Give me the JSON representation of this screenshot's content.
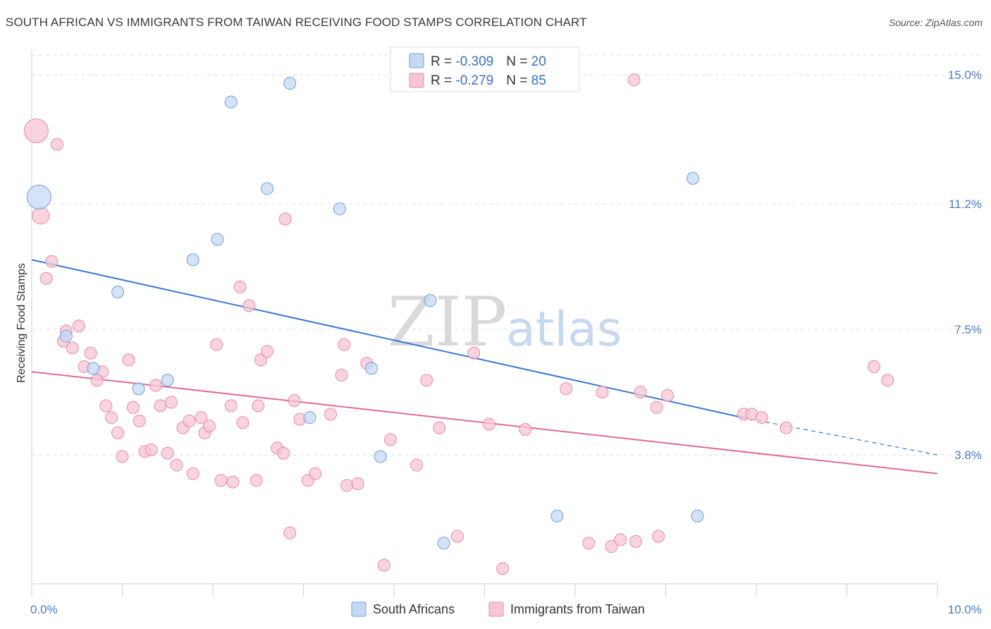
{
  "title": "SOUTH AFRICAN VS IMMIGRANTS FROM TAIWAN RECEIVING FOOD STAMPS CORRELATION CHART",
  "source": "Source: ZipAtlas.com",
  "watermark": {
    "zip": "ZIP",
    "atlas": "atlas"
  },
  "colors": {
    "blue_fill": "#c5d9f3",
    "blue_stroke": "#6f9fdb",
    "blue_line": "#3a78d4",
    "pink_fill": "#f7c6d4",
    "pink_stroke": "#e58aa8",
    "pink_line": "#e06b98",
    "grid": "#dcdcdc",
    "tick_text": "#4a7cc7"
  },
  "legend": {
    "rows": [
      {
        "r_label": "R = ",
        "r_value": "-0.309",
        "n_label": "N = ",
        "n_value": "20"
      },
      {
        "r_label": "R = ",
        "r_value": "-0.279",
        "n_label": "N = ",
        "n_value": "85"
      }
    ]
  },
  "bottom_legend": [
    "South Africans",
    "Immigrants from Taiwan"
  ],
  "chart_data": {
    "type": "scatter",
    "title": "SOUTH AFRICAN VS IMMIGRANTS FROM TAIWAN RECEIVING FOOD STAMPS CORRELATION CHART",
    "xlabel": "",
    "ylabel": "Receiving Food Stamps",
    "xlim": [
      0,
      10
    ],
    "ylim": [
      0,
      15.75
    ],
    "x_tick_labels": [
      "0.0%",
      "10.0%"
    ],
    "y_ticks": [
      3.8,
      7.5,
      11.2,
      15.0
    ],
    "y_tick_labels": [
      "3.8%",
      "7.5%",
      "11.2%",
      "15.0%"
    ],
    "grid": true,
    "legend_position": "top-center",
    "series": [
      {
        "name": "South Africans",
        "r": -0.309,
        "n": 20,
        "trend": {
          "x0": 0.0,
          "y0": 9.55,
          "x1": 7.85,
          "y1": 4.9,
          "dashed_to_x": 10.0,
          "dashed_to_y": 3.8
        },
        "points": [
          {
            "x": 0.08,
            "y": 11.4,
            "size": "large"
          },
          {
            "x": 2.2,
            "y": 14.2
          },
          {
            "x": 2.85,
            "y": 14.75
          },
          {
            "x": 2.6,
            "y": 11.65
          },
          {
            "x": 3.4,
            "y": 11.05
          },
          {
            "x": 2.05,
            "y": 10.15
          },
          {
            "x": 1.78,
            "y": 9.55
          },
          {
            "x": 0.95,
            "y": 8.6
          },
          {
            "x": 0.38,
            "y": 7.3
          },
          {
            "x": 0.68,
            "y": 6.35
          },
          {
            "x": 1.18,
            "y": 5.75
          },
          {
            "x": 1.5,
            "y": 6.0
          },
          {
            "x": 4.4,
            "y": 8.35
          },
          {
            "x": 3.75,
            "y": 6.35
          },
          {
            "x": 3.07,
            "y": 4.9
          },
          {
            "x": 3.85,
            "y": 3.75
          },
          {
            "x": 7.3,
            "y": 11.95
          },
          {
            "x": 5.8,
            "y": 2.0
          },
          {
            "x": 7.35,
            "y": 2.0
          },
          {
            "x": 4.55,
            "y": 1.2
          }
        ]
      },
      {
        "name": "Immigrants from Taiwan",
        "r": -0.279,
        "n": 85,
        "trend": {
          "x0": 0.0,
          "y0": 6.25,
          "x1": 10.0,
          "y1": 3.25
        },
        "points": [
          {
            "x": 0.05,
            "y": 13.35,
            "size": "large"
          },
          {
            "x": 0.28,
            "y": 12.95
          },
          {
            "x": 0.1,
            "y": 10.85,
            "size": "medium"
          },
          {
            "x": 0.22,
            "y": 9.5
          },
          {
            "x": 0.16,
            "y": 9.0
          },
          {
            "x": 0.52,
            "y": 7.6
          },
          {
            "x": 0.38,
            "y": 7.45
          },
          {
            "x": 0.35,
            "y": 7.15
          },
          {
            "x": 0.45,
            "y": 6.95
          },
          {
            "x": 0.65,
            "y": 6.8
          },
          {
            "x": 0.58,
            "y": 6.4
          },
          {
            "x": 0.78,
            "y": 6.25
          },
          {
            "x": 0.72,
            "y": 6.0
          },
          {
            "x": 1.07,
            "y": 6.6
          },
          {
            "x": 0.82,
            "y": 5.25
          },
          {
            "x": 0.88,
            "y": 4.9
          },
          {
            "x": 0.95,
            "y": 4.45
          },
          {
            "x": 1.0,
            "y": 3.75
          },
          {
            "x": 1.12,
            "y": 5.2
          },
          {
            "x": 1.19,
            "y": 4.8
          },
          {
            "x": 1.25,
            "y": 3.9
          },
          {
            "x": 1.32,
            "y": 3.95
          },
          {
            "x": 1.37,
            "y": 5.85
          },
          {
            "x": 1.42,
            "y": 5.25
          },
          {
            "x": 1.5,
            "y": 3.85
          },
          {
            "x": 1.54,
            "y": 5.35
          },
          {
            "x": 1.6,
            "y": 3.5
          },
          {
            "x": 1.67,
            "y": 4.6
          },
          {
            "x": 1.74,
            "y": 4.8
          },
          {
            "x": 1.78,
            "y": 3.25
          },
          {
            "x": 1.87,
            "y": 4.9
          },
          {
            "x": 1.91,
            "y": 4.45
          },
          {
            "x": 1.96,
            "y": 4.65
          },
          {
            "x": 2.04,
            "y": 7.05
          },
          {
            "x": 2.09,
            "y": 3.05
          },
          {
            "x": 2.2,
            "y": 5.25
          },
          {
            "x": 2.22,
            "y": 3.0
          },
          {
            "x": 2.33,
            "y": 4.75
          },
          {
            "x": 2.4,
            "y": 8.2
          },
          {
            "x": 2.3,
            "y": 8.75
          },
          {
            "x": 2.5,
            "y": 5.25
          },
          {
            "x": 2.53,
            "y": 6.6
          },
          {
            "x": 2.48,
            "y": 3.05
          },
          {
            "x": 2.6,
            "y": 6.85
          },
          {
            "x": 2.71,
            "y": 4.0
          },
          {
            "x": 2.78,
            "y": 3.85
          },
          {
            "x": 2.8,
            "y": 10.75
          },
          {
            "x": 2.9,
            "y": 5.4
          },
          {
            "x": 2.96,
            "y": 4.85
          },
          {
            "x": 2.85,
            "y": 1.5
          },
          {
            "x": 3.05,
            "y": 3.05
          },
          {
            "x": 3.13,
            "y": 3.25
          },
          {
            "x": 3.3,
            "y": 5.0
          },
          {
            "x": 3.42,
            "y": 6.15
          },
          {
            "x": 3.45,
            "y": 7.05
          },
          {
            "x": 3.48,
            "y": 2.9
          },
          {
            "x": 3.6,
            "y": 2.95
          },
          {
            "x": 3.7,
            "y": 6.5
          },
          {
            "x": 3.89,
            "y": 0.55
          },
          {
            "x": 3.96,
            "y": 4.25
          },
          {
            "x": 4.25,
            "y": 3.5
          },
          {
            "x": 4.36,
            "y": 6.0
          },
          {
            "x": 4.5,
            "y": 4.6
          },
          {
            "x": 4.7,
            "y": 1.4
          },
          {
            "x": 4.88,
            "y": 6.8
          },
          {
            "x": 5.05,
            "y": 4.7
          },
          {
            "x": 5.2,
            "y": 0.45
          },
          {
            "x": 5.45,
            "y": 4.55
          },
          {
            "x": 5.9,
            "y": 5.75
          },
          {
            "x": 6.15,
            "y": 1.2
          },
          {
            "x": 6.3,
            "y": 5.65
          },
          {
            "x": 6.4,
            "y": 1.1
          },
          {
            "x": 6.5,
            "y": 1.3
          },
          {
            "x": 6.67,
            "y": 1.25
          },
          {
            "x": 6.72,
            "y": 5.65
          },
          {
            "x": 6.9,
            "y": 5.2
          },
          {
            "x": 6.65,
            "y": 14.85
          },
          {
            "x": 7.02,
            "y": 5.55
          },
          {
            "x": 6.92,
            "y": 1.4
          },
          {
            "x": 7.86,
            "y": 5.0
          },
          {
            "x": 7.95,
            "y": 5.0
          },
          {
            "x": 8.06,
            "y": 4.9
          },
          {
            "x": 8.33,
            "y": 4.6
          },
          {
            "x": 9.3,
            "y": 6.4
          },
          {
            "x": 9.45,
            "y": 6.0
          }
        ]
      }
    ]
  }
}
